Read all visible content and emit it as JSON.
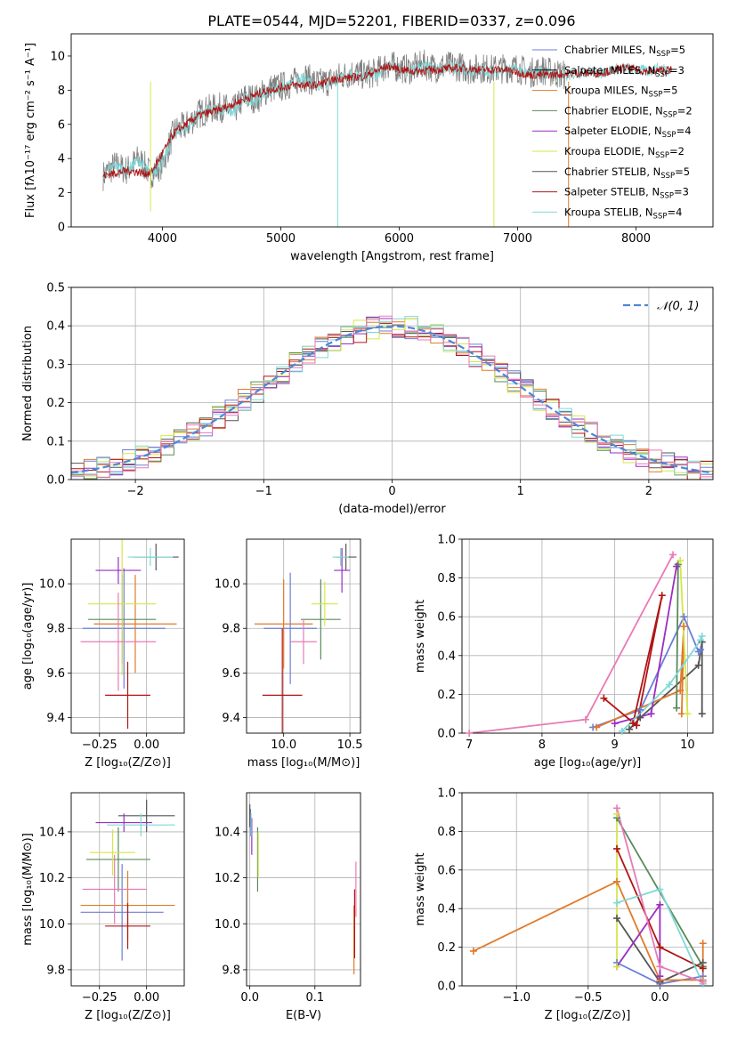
{
  "figure_title": "PLATE=0544, MJD=52201, FIBERID=0337, z=0.096",
  "colors": {
    "Chabrier MILES": "#6b7eda",
    "Salpeter MILES": "#000000",
    "Kroupa MILES": "#e07a2a",
    "Chabrier ELODIE": "#5a8a5a",
    "Salpeter ELODIE": "#9a2ec2",
    "Kroupa ELODIE": "#d6e64a",
    "Chabrier STELIB": "#555555",
    "Salpeter STELIB": "#b01515",
    "Kroupa STELIB": "#7fd8d8",
    "pink": "#e87ab4",
    "gaussian": "#4f86d8"
  },
  "chart_data": [
    {
      "id": "spectrum",
      "type": "line",
      "title": "PLATE=0544, MJD=52201, FIBERID=0337, z=0.096",
      "xlabel": "wavelength [Angstrom, rest frame]",
      "ylabel": "Flux [fλ10⁻¹⁷ erg cm⁻² s⁻¹ A⁻¹]",
      "xlim": [
        3230,
        8650
      ],
      "ylim": [
        0,
        11.3
      ],
      "xticks": [
        4000,
        5000,
        6000,
        7000,
        8000
      ],
      "yticks": [
        0,
        2,
        4,
        6,
        8,
        10
      ],
      "grid": false,
      "legend_position": "right",
      "legend": [
        {
          "label": "Chabrier MILES, N",
          "sub": "SSP",
          "suffix": "=5",
          "color": "#6b7eda"
        },
        {
          "label": "Salpeter MILES, N",
          "sub": "SSP",
          "suffix": "=3",
          "color": "#000000"
        },
        {
          "label": "Kroupa MILES, N",
          "sub": "SSP",
          "suffix": "=5",
          "color": "#e07a2a"
        },
        {
          "label": "Chabrier ELODIE, N",
          "sub": "SSP",
          "suffix": "=2",
          "color": "#5a8a5a"
        },
        {
          "label": "Salpeter ELODIE, N",
          "sub": "SSP",
          "suffix": "=4",
          "color": "#9a2ec2"
        },
        {
          "label": "Kroupa ELODIE, N",
          "sub": "SSP",
          "suffix": "=2",
          "color": "#d6e64a"
        },
        {
          "label": "Chabrier STELIB, N",
          "sub": "SSP",
          "suffix": "=5",
          "color": "#555555"
        },
        {
          "label": "Salpeter STELIB, N",
          "sub": "SSP",
          "suffix": "=3",
          "color": "#b01515"
        },
        {
          "label": "Kroupa STELIB, N",
          "sub": "SSP",
          "suffix": "=4",
          "color": "#7fd8d8"
        }
      ],
      "series": [
        {
          "name": "data",
          "color": "#808080",
          "x": [
            3500,
            3600,
            3700,
            3800,
            3900,
            4000,
            4100,
            4200,
            4300,
            4400,
            4500,
            4600,
            4700,
            4800,
            4900,
            5000,
            5100,
            5200,
            5300,
            5400,
            5500,
            5600,
            5700,
            5800,
            5900,
            6000,
            6100,
            6200,
            6300,
            6400,
            6500,
            6600,
            6700,
            6800,
            6900,
            7000,
            7100,
            7200,
            7300,
            7400
          ],
          "y": [
            3.0,
            3.6,
            3.3,
            4.0,
            3.1,
            3.7,
            5.6,
            5.9,
            6.6,
            6.9,
            7.0,
            6.8,
            7.6,
            7.5,
            8.1,
            8.2,
            8.4,
            8.8,
            8.4,
            8.5,
            8.8,
            9.0,
            8.9,
            9.0,
            9.5,
            9.3,
            9.2,
            9.5,
            9.3,
            9.4,
            9.4,
            9.2,
            9.3,
            9.2,
            9.3,
            9.3,
            9.0,
            9.2,
            9.0,
            8.9
          ],
          "noise": 0.9
        },
        {
          "name": "Kroupa STELIB",
          "color": "#7fd8d8",
          "x": [
            3500,
            3600,
            3700,
            3800,
            3900,
            4000,
            4100,
            4200,
            4300,
            4400,
            4500,
            4600,
            4700,
            4800,
            4900,
            5000,
            5100,
            5200,
            5300,
            5400,
            5500,
            5600,
            5700,
            5800,
            5900,
            6000,
            6100,
            6200,
            6300,
            6400,
            6500,
            6600,
            6700,
            6800,
            6900,
            7000,
            7100,
            7200,
            7300,
            7400,
            7500,
            7600,
            7700,
            7800,
            7900,
            8000,
            8100,
            8200,
            8300
          ],
          "y": [
            3.0,
            3.6,
            3.3,
            3.9,
            3.1,
            3.7,
            5.5,
            5.8,
            6.5,
            6.8,
            6.9,
            6.7,
            7.5,
            7.4,
            8.0,
            8.1,
            8.3,
            8.7,
            8.3,
            8.4,
            8.7,
            8.9,
            8.8,
            8.9,
            9.4,
            9.2,
            9.1,
            9.4,
            9.2,
            9.3,
            9.3,
            9.1,
            9.2,
            9.1,
            9.2,
            9.2,
            8.9,
            9.1,
            8.9,
            8.8,
            9.0,
            9.1,
            9.0,
            9.2,
            9.3,
            9.2,
            9.1,
            9.3,
            9.2
          ],
          "noise": 0.35
        },
        {
          "name": "Salpeter STELIB",
          "color": "#b01515",
          "x": [
            3500,
            3700,
            3900,
            4100,
            4300,
            4500,
            4700,
            4900,
            5100,
            5300,
            5500,
            5700,
            5900,
            6100,
            6300,
            6500,
            6700,
            6900,
            7100,
            7300,
            7500,
            7700,
            7900,
            8100,
            8300
          ],
          "y": [
            3.0,
            3.3,
            3.1,
            5.5,
            6.5,
            6.9,
            7.5,
            8.0,
            8.3,
            8.3,
            8.7,
            8.8,
            9.4,
            9.1,
            9.2,
            9.3,
            9.2,
            9.2,
            8.9,
            8.9,
            9.0,
            9.0,
            9.3,
            9.1,
            9.2
          ],
          "noise": 0.25
        }
      ]
    },
    {
      "id": "residuals",
      "type": "line",
      "xlabel": "(data-model)/error",
      "ylabel": "Normed distribution",
      "xlim": [
        -2.5,
        2.5
      ],
      "ylim": [
        0,
        0.5
      ],
      "xticks": [
        -2,
        -1,
        0,
        1,
        2
      ],
      "yticks": [
        0.0,
        0.1,
        0.2,
        0.3,
        0.4,
        0.5
      ],
      "grid": true,
      "legend_position": "top-right",
      "legend": [
        {
          "label": "𝒩(0, 1)",
          "color": "#4f86d8",
          "dashed": true
        }
      ],
      "bin_width": 0.1
    },
    {
      "id": "age-vs-Z",
      "type": "scatter",
      "xlabel": "Z [log₁₀(Z/Z⊙)]",
      "ylabel": "age  [log₁₀(age/yr)]",
      "xlim": [
        -0.4,
        0.2
      ],
      "ylim": [
        9.33,
        10.2
      ],
      "xticks": [
        -0.25,
        0.0
      ],
      "yticks": [
        9.4,
        9.6,
        9.8,
        10.0
      ],
      "grid": true,
      "points": [
        {
          "x": -0.12,
          "y": 9.8,
          "xerr": 0.22,
          "yerr": 0.27,
          "color": "#6b7eda"
        },
        {
          "x": 0.05,
          "y": 10.12,
          "xerr": 0.12,
          "yerr": 0.06,
          "color": "#555555"
        },
        {
          "x": -0.06,
          "y": 9.82,
          "xerr": 0.22,
          "yerr": 0.22,
          "color": "#e07a2a"
        },
        {
          "x": -0.13,
          "y": 9.84,
          "xerr": 0.18,
          "yerr": 0.2,
          "color": "#5a8a5a"
        },
        {
          "x": -0.15,
          "y": 10.06,
          "xerr": 0.12,
          "yerr": 0.06,
          "color": "#9a2ec2"
        },
        {
          "x": -0.13,
          "y": 9.91,
          "xerr": 0.18,
          "yerr": 0.32,
          "color": "#d6e64a"
        },
        {
          "x": -0.1,
          "y": 9.5,
          "xerr": 0.12,
          "yerr": 0.15,
          "color": "#b01515"
        },
        {
          "x": -0.15,
          "y": 9.74,
          "xerr": 0.2,
          "yerr": 0.22,
          "color": "#e87ab4"
        },
        {
          "x": 0.02,
          "y": 10.12,
          "xerr": 0.12,
          "yerr": 0.04,
          "color": "#7fd8d8"
        }
      ]
    },
    {
      "id": "age-vs-mass",
      "type": "scatter",
      "xlabel": "mass [log₁₀(M/M⊙)]",
      "ylabel": "",
      "xlim": [
        9.72,
        10.58
      ],
      "ylim": [
        9.33,
        10.2
      ],
      "xticks": [
        10.0,
        10.5
      ],
      "yticks": [
        9.4,
        9.6,
        9.8,
        10.0
      ],
      "grid": true,
      "points": [
        {
          "x": 10.05,
          "y": 9.8,
          "xerr": 0.2,
          "yerr": 0.25,
          "color": "#6b7eda"
        },
        {
          "x": 10.47,
          "y": 10.12,
          "xerr": 0.08,
          "yerr": 0.06,
          "color": "#555555"
        },
        {
          "x": 10.0,
          "y": 9.82,
          "xerr": 0.22,
          "yerr": 0.2,
          "color": "#e07a2a"
        },
        {
          "x": 10.28,
          "y": 9.84,
          "xerr": 0.15,
          "yerr": 0.18,
          "color": "#5a8a5a"
        },
        {
          "x": 10.44,
          "y": 10.06,
          "xerr": 0.06,
          "yerr": 0.1,
          "color": "#9a2ec2"
        },
        {
          "x": 10.31,
          "y": 9.91,
          "xerr": 0.1,
          "yerr": 0.1,
          "color": "#d6e64a"
        },
        {
          "x": 9.99,
          "y": 9.5,
          "xerr": 0.15,
          "yerr": 0.3,
          "color": "#b01515"
        },
        {
          "x": 10.15,
          "y": 9.74,
          "xerr": 0.1,
          "yerr": 0.1,
          "color": "#e87ab4"
        },
        {
          "x": 10.43,
          "y": 10.12,
          "xerr": 0.06,
          "yerr": 0.04,
          "color": "#7fd8d8"
        }
      ]
    },
    {
      "id": "weight-vs-age",
      "type": "line",
      "xlabel": "age  [log₁₀(age/yr)]",
      "ylabel": "mass weight",
      "xlim": [
        6.9,
        10.35
      ],
      "ylim": [
        0,
        1.0
      ],
      "xticks": [
        7,
        8,
        9,
        10
      ],
      "yticks": [
        0.0,
        0.2,
        0.4,
        0.6,
        0.8,
        1.0
      ],
      "grid": true,
      "series": [
        {
          "name": "Chabrier MILES",
          "color": "#6b7eda",
          "x": [
            8.7,
            9.35,
            9.95,
            10.15,
            10.18
          ],
          "y": [
            0.03,
            0.12,
            0.6,
            0.42,
            0.43
          ]
        },
        {
          "name": "Salpeter MILES",
          "color": "#555555",
          "x": [
            9.2,
            9.35,
            10.15,
            10.2,
            10.2
          ],
          "y": [
            0.02,
            0.08,
            0.35,
            0.47,
            0.1
          ]
        },
        {
          "name": "Kroupa MILES",
          "color": "#e07a2a",
          "x": [
            8.75,
            9.9,
            9.95,
            9.92
          ],
          "y": [
            0.03,
            0.22,
            0.55,
            0.1
          ]
        },
        {
          "name": "Chabrier ELODIE",
          "color": "#5a8a5a",
          "x": [
            9.87,
            9.85
          ],
          "y": [
            0.87,
            0.13
          ]
        },
        {
          "name": "Salpeter ELODIE",
          "color": "#9a2ec2",
          "x": [
            9.0,
            9.5,
            9.85
          ],
          "y": [
            0.05,
            0.1,
            0.86
          ]
        },
        {
          "name": "Kroupa ELODIE",
          "color": "#d6e64a",
          "x": [
            9.9,
            10.0
          ],
          "y": [
            0.89,
            0.1
          ]
        },
        {
          "name": "Salpeter STELIB",
          "color": "#b01515",
          "x": [
            8.85,
            9.3,
            9.65,
            9.25
          ],
          "y": [
            0.18,
            0.04,
            0.71,
            0.05
          ]
        },
        {
          "name": "Kroupa STELIB",
          "color": "#7fd8d8",
          "x": [
            9.1,
            9.75,
            10.18,
            10.2
          ],
          "y": [
            0.01,
            0.25,
            0.48,
            0.5
          ]
        },
        {
          "name": "pink",
          "color": "#e87ab4",
          "x": [
            7.0,
            8.6,
            9.8
          ],
          "y": [
            0.0,
            0.07,
            0.92
          ]
        }
      ]
    },
    {
      "id": "mass-vs-Z",
      "type": "scatter",
      "xlabel": "Z [log₁₀(Z/Z⊙)]",
      "ylabel": "mass [log₁₀(M/M⊙)]",
      "xlim": [
        -0.4,
        0.2
      ],
      "ylim": [
        9.73,
        10.57
      ],
      "xticks": [
        -0.25,
        0.0
      ],
      "yticks": [
        9.8,
        10.0,
        10.2,
        10.4
      ],
      "grid": true,
      "points": [
        {
          "x": -0.13,
          "y": 10.05,
          "xerr": 0.22,
          "yerr": 0.21,
          "color": "#6b7eda"
        },
        {
          "x": 0.0,
          "y": 10.47,
          "xerr": 0.15,
          "yerr": 0.07,
          "color": "#555555"
        },
        {
          "x": -0.1,
          "y": 10.08,
          "xerr": 0.25,
          "yerr": 0.15,
          "color": "#e07a2a"
        },
        {
          "x": -0.15,
          "y": 10.28,
          "xerr": 0.17,
          "yerr": 0.14,
          "color": "#5a8a5a"
        },
        {
          "x": -0.12,
          "y": 10.44,
          "xerr": 0.15,
          "yerr": 0.04,
          "color": "#9a2ec2"
        },
        {
          "x": -0.18,
          "y": 10.31,
          "xerr": 0.12,
          "yerr": 0.1,
          "color": "#d6e64a"
        },
        {
          "x": -0.1,
          "y": 9.99,
          "xerr": 0.12,
          "yerr": 0.1,
          "color": "#b01515"
        },
        {
          "x": -0.17,
          "y": 10.15,
          "xerr": 0.17,
          "yerr": 0.15,
          "color": "#e87ab4"
        },
        {
          "x": -0.03,
          "y": 10.43,
          "xerr": 0.18,
          "yerr": 0.05,
          "color": "#7fd8d8"
        }
      ]
    },
    {
      "id": "mass-vs-EBV",
      "type": "scatter",
      "xlabel": "E(B-V)",
      "ylabel": "",
      "xlim": [
        -0.005,
        0.17
      ],
      "ylim": [
        9.73,
        10.57
      ],
      "xticks": [
        0.0,
        0.1
      ],
      "yticks": [
        9.8,
        10.0,
        10.2,
        10.4
      ],
      "grid": true,
      "points": [
        {
          "x": 0.001,
          "y": 10.44,
          "xerr": 0.0,
          "yerr": 0.06,
          "color": "#6b7eda"
        },
        {
          "x": 0.0,
          "y": 10.47,
          "xerr": 0.0,
          "yerr": 0.05,
          "color": "#555555"
        },
        {
          "x": 0.16,
          "y": 9.93,
          "xerr": 0.0,
          "yerr": 0.15,
          "color": "#e07a2a"
        },
        {
          "x": 0.012,
          "y": 10.28,
          "xerr": 0.0,
          "yerr": 0.14,
          "color": "#5a8a5a"
        },
        {
          "x": 0.003,
          "y": 10.38,
          "xerr": 0.0,
          "yerr": 0.08,
          "color": "#9a2ec2"
        },
        {
          "x": 0.013,
          "y": 10.3,
          "xerr": 0.0,
          "yerr": 0.1,
          "color": "#d6e64a"
        },
        {
          "x": 0.161,
          "y": 10.0,
          "xerr": 0.0,
          "yerr": 0.15,
          "color": "#b01515"
        },
        {
          "x": 0.163,
          "y": 10.15,
          "xerr": 0.0,
          "yerr": 0.12,
          "color": "#e87ab4"
        },
        {
          "x": 0.002,
          "y": 10.43,
          "xerr": 0.0,
          "yerr": 0.05,
          "color": "#7fd8d8"
        }
      ]
    },
    {
      "id": "weight-vs-Z",
      "type": "line",
      "xlabel": "Z [log₁₀(Z/Z⊙)]",
      "ylabel": "mass weight",
      "xlim": [
        -1.38,
        0.37
      ],
      "ylim": [
        0,
        1.0
      ],
      "xticks": [
        -1.0,
        -0.5,
        0.0
      ],
      "yticks": [
        0.0,
        0.2,
        0.4,
        0.6,
        0.8,
        1.0
      ],
      "grid": true,
      "series": [
        {
          "name": "Chabrier MILES",
          "color": "#6b7eda",
          "x": [
            -0.3,
            0.0,
            0.3
          ],
          "y": [
            0.12,
            0.01,
            0.05
          ]
        },
        {
          "name": "Salpeter MILES",
          "color": "#555555",
          "x": [
            -0.3,
            0.0,
            0.3
          ],
          "y": [
            0.35,
            0.02,
            0.12
          ]
        },
        {
          "name": "Kroupa MILES",
          "color": "#e07a2a",
          "x": [
            -1.3,
            -0.3,
            0.0,
            0.3,
            0.3
          ],
          "y": [
            0.18,
            0.54,
            0.03,
            0.03,
            0.22
          ]
        },
        {
          "name": "Chabrier ELODIE",
          "color": "#5a8a5a",
          "x": [
            -0.3,
            0.3
          ],
          "y": [
            0.87,
            0.1
          ]
        },
        {
          "name": "Salpeter ELODIE",
          "color": "#9a2ec2",
          "x": [
            -0.3,
            0.0,
            0.0
          ],
          "y": [
            0.1,
            0.42,
            0.05
          ]
        },
        {
          "name": "Kroupa ELODIE",
          "color": "#d6e64a",
          "x": [
            -0.3,
            -0.3
          ],
          "y": [
            0.89,
            0.1
          ]
        },
        {
          "name": "Salpeter STELIB",
          "color": "#b01515",
          "x": [
            -0.3,
            0.0,
            0.3
          ],
          "y": [
            0.71,
            0.2,
            0.09
          ]
        },
        {
          "name": "Kroupa STELIB",
          "color": "#7fd8d8",
          "x": [
            -0.3,
            0.0,
            0.3
          ],
          "y": [
            0.43,
            0.5,
            0.01
          ]
        },
        {
          "name": "pink",
          "color": "#e87ab4",
          "x": [
            -0.3,
            0.0,
            0.3
          ],
          "y": [
            0.92,
            0.1,
            0.02
          ]
        }
      ]
    }
  ]
}
